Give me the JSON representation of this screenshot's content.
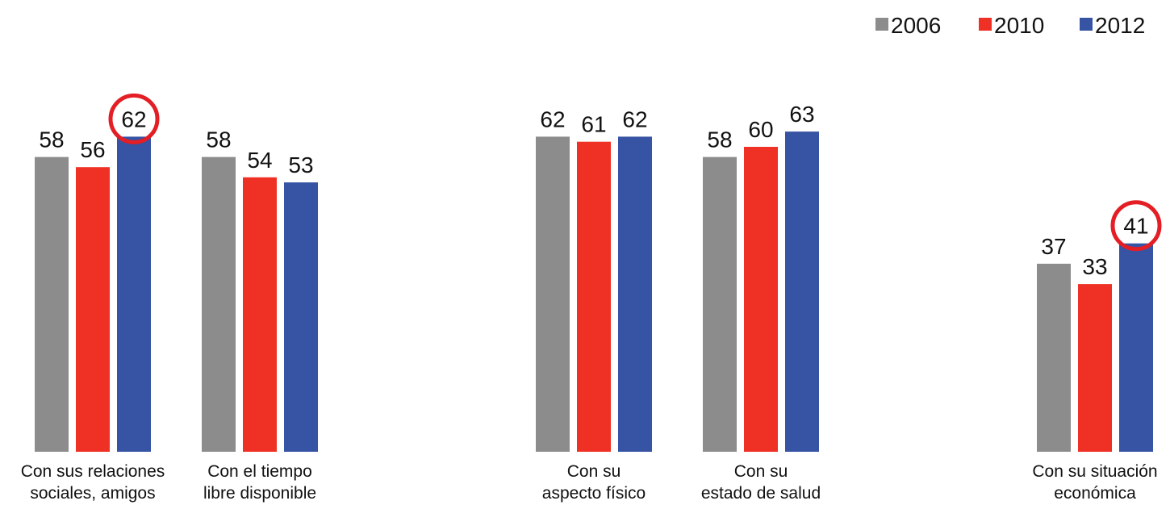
{
  "chart_data": {
    "type": "bar",
    "categories": [
      [
        "Con sus relaciones",
        "sociales, amigos"
      ],
      [
        "Con el tiempo",
        "libre disponible"
      ],
      [
        "Con su",
        "aspecto físico"
      ],
      [
        "Con su",
        "estado de salud"
      ],
      [
        "Con su situación",
        "económica"
      ]
    ],
    "series": [
      {
        "name": "2006",
        "color": "#8c8c8c",
        "values": [
          58,
          58,
          62,
          58,
          37
        ]
      },
      {
        "name": "2010",
        "color": "#ee3124",
        "values": [
          56,
          54,
          61,
          60,
          33
        ]
      },
      {
        "name": "2012",
        "color": "#3653a4",
        "values": [
          62,
          53,
          62,
          63,
          41
        ]
      }
    ],
    "highlighted": [
      {
        "category_index": 0,
        "series_index": 2,
        "ring_color": "#e31e24"
      },
      {
        "category_index": 4,
        "series_index": 2,
        "ring_color": "#e31e24"
      }
    ],
    "legend_position": "top-right",
    "ylim": [
      0,
      63
    ],
    "grid": false,
    "title": "",
    "xlabel": "",
    "ylabel": ""
  }
}
